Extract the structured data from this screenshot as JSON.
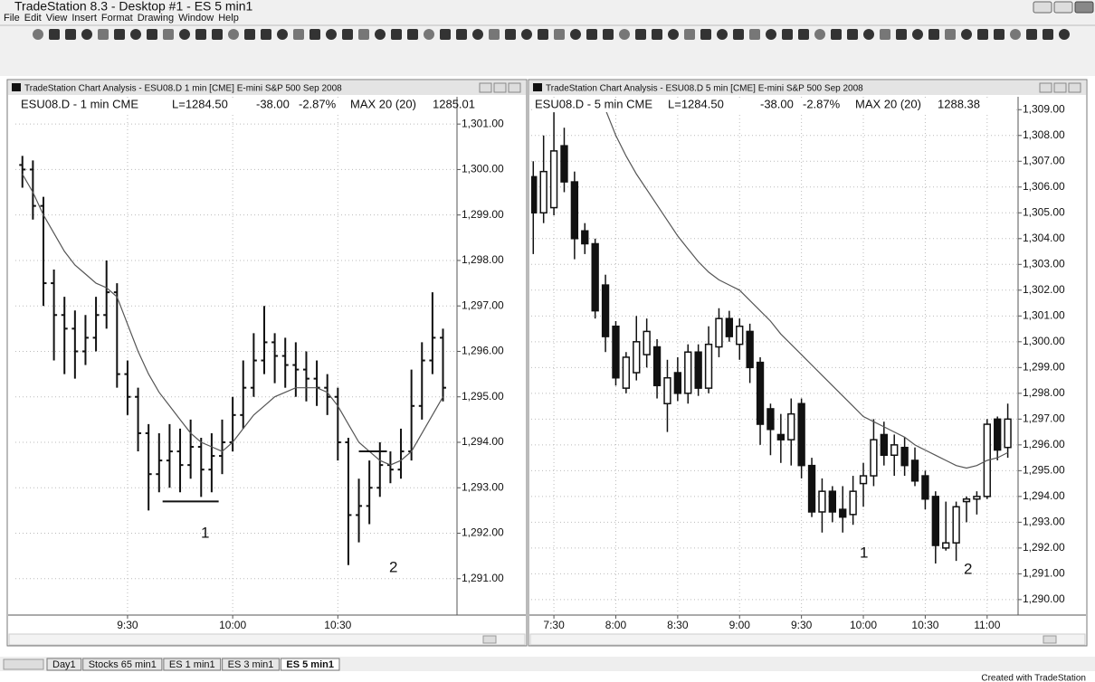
{
  "window": {
    "title": "TradeStation 8.3 - Desktop #1 - ES 5 min1",
    "menu": [
      "File",
      "Edit",
      "View",
      "Insert",
      "Format",
      "Drawing",
      "Window",
      "Help"
    ]
  },
  "panels": [
    {
      "title": "TradeStation Chart Analysis - ESU08.D 1 min [CME] E-mini S&P 500 Sep 2008",
      "header": [
        "ESU08.D - 1 min CME",
        "L=1284.50",
        "-38.00",
        "-2.87%",
        "MAX 20 (20)",
        "1285.01"
      ],
      "chart": {
        "type": "ohlc",
        "color": "#111111",
        "ma_color": "#555555",
        "grid": true,
        "x": [
          "9:00",
          "9:03",
          "9:06",
          "9:09",
          "9:12",
          "9:15",
          "9:18",
          "9:21",
          "9:24",
          "9:27",
          "9:30",
          "9:33",
          "9:36",
          "9:39",
          "9:42",
          "9:45",
          "9:48",
          "9:51",
          "9:54",
          "9:57",
          "10:00",
          "10:03",
          "10:06",
          "10:09",
          "10:12",
          "10:15",
          "10:18",
          "10:21",
          "10:24",
          "10:27",
          "10:30",
          "10:33",
          "10:36",
          "10:39",
          "10:42",
          "10:45",
          "10:48",
          "10:51",
          "10:54",
          "10:57",
          "11:00"
        ],
        "open": [
          1300.1,
          1300.0,
          1299.2,
          1297.5,
          1296.8,
          1296.5,
          1296.0,
          1296.3,
          1296.8,
          1297.3,
          1295.5,
          1295.0,
          1294.2,
          1293.3,
          1293.6,
          1293.8,
          1293.5,
          1293.9,
          1293.4,
          1293.7,
          1294.0,
          1294.6,
          1295.2,
          1295.8,
          1296.2,
          1295.9,
          1295.7,
          1295.6,
          1295.4,
          1295.2,
          1295.0,
          1294.0,
          1292.4,
          1292.6,
          1293.0,
          1293.5,
          1293.4,
          1293.8,
          1294.8,
          1295.8,
          1296.3
        ],
        "high": [
          1300.3,
          1300.2,
          1299.4,
          1297.8,
          1297.2,
          1296.9,
          1296.8,
          1297.2,
          1298.0,
          1297.5,
          1295.8,
          1295.2,
          1294.4,
          1294.2,
          1294.4,
          1294.3,
          1294.5,
          1294.1,
          1294.2,
          1294.5,
          1295.0,
          1295.8,
          1296.4,
          1297.0,
          1296.4,
          1296.3,
          1296.2,
          1296.0,
          1295.8,
          1295.5,
          1295.2,
          1294.1,
          1293.2,
          1293.6,
          1294.0,
          1293.8,
          1294.3,
          1295.6,
          1296.2,
          1297.3,
          1296.5
        ],
        "low": [
          1299.6,
          1298.9,
          1297.0,
          1295.8,
          1295.5,
          1295.4,
          1295.7,
          1296.0,
          1296.5,
          1295.2,
          1294.6,
          1293.8,
          1292.5,
          1292.9,
          1293.0,
          1292.9,
          1293.2,
          1292.8,
          1292.9,
          1293.3,
          1293.8,
          1294.3,
          1295.0,
          1295.5,
          1295.3,
          1295.2,
          1295.0,
          1294.9,
          1294.8,
          1294.6,
          1293.6,
          1291.3,
          1291.8,
          1292.2,
          1292.8,
          1293.1,
          1293.2,
          1293.6,
          1294.5,
          1295.5,
          1294.9
        ],
        "close": [
          1300.0,
          1299.2,
          1297.5,
          1296.8,
          1296.5,
          1296.0,
          1296.3,
          1296.8,
          1297.3,
          1295.5,
          1295.0,
          1294.2,
          1293.3,
          1293.6,
          1293.8,
          1293.5,
          1293.9,
          1293.4,
          1293.7,
          1294.0,
          1294.6,
          1295.2,
          1295.8,
          1296.2,
          1295.9,
          1295.7,
          1295.6,
          1295.4,
          1295.2,
          1295.0,
          1294.0,
          1292.4,
          1292.6,
          1293.0,
          1293.5,
          1293.4,
          1293.8,
          1294.8,
          1295.8,
          1296.3,
          1295.2
        ],
        "ma": [
          1299.9,
          1299.5,
          1299.0,
          1298.6,
          1298.2,
          1297.9,
          1297.7,
          1297.5,
          1297.4,
          1297.2,
          1296.6,
          1296.0,
          1295.5,
          1295.1,
          1294.8,
          1294.5,
          1294.2,
          1294.0,
          1293.9,
          1293.8,
          1294.0,
          1294.3,
          1294.6,
          1294.8,
          1295.0,
          1295.1,
          1295.2,
          1295.2,
          1295.2,
          1295.1,
          1294.8,
          1294.4,
          1294.0,
          1293.8,
          1293.6,
          1293.5,
          1293.6,
          1293.8,
          1294.2,
          1294.6,
          1295.0
        ],
        "lines": [
          {
            "price": 1292.7,
            "from": "9:40",
            "to": "9:56"
          },
          {
            "price": 1293.8,
            "from": "10:36",
            "to": "10:44"
          }
        ],
        "labels": [
          "1",
          "2"
        ],
        "xlim": [
          "8:58",
          "11:04"
        ],
        "xticks": [
          "9:30",
          "10:00",
          "10:30"
        ],
        "ylim": [
          1290.2,
          1301.6
        ],
        "yticks": [
          {
            "value": 1291,
            "label": "1,291.00"
          },
          {
            "value": 1292,
            "label": "1,292.00"
          },
          {
            "value": 1293,
            "label": "1,293.00"
          },
          {
            "value": 1294,
            "label": "1,294.00"
          },
          {
            "value": 1295,
            "label": "1,295.00"
          },
          {
            "value": 1296,
            "label": "1,296.00"
          },
          {
            "value": 1297,
            "label": "1,297.00"
          },
          {
            "value": 1298,
            "label": "1,298.00"
          },
          {
            "value": 1299,
            "label": "1,299.00"
          },
          {
            "value": 1300,
            "label": "1,300.00"
          },
          {
            "value": 1301,
            "label": "1,301.00"
          }
        ]
      }
    },
    {
      "title": "TradeStation Chart Analysis - ESU08.D 5 min [CME] E-mini S&P 500 Sep 2008",
      "header": [
        "ESU08.D - 5 min CME",
        "L=1284.50",
        "-38.00",
        "-2.87%",
        "MAX 20 (20)",
        "1288.38"
      ],
      "chart": {
        "type": "candlestick",
        "color": "#111111",
        "ma_color": "#555555",
        "grid": true,
        "x": [
          "7:20",
          "7:25",
          "7:30",
          "7:35",
          "7:40",
          "7:45",
          "7:50",
          "7:55",
          "8:00",
          "8:05",
          "8:10",
          "8:15",
          "8:20",
          "8:25",
          "8:30",
          "8:35",
          "8:40",
          "8:45",
          "8:50",
          "8:55",
          "9:00",
          "9:05",
          "9:10",
          "9:15",
          "9:20",
          "9:25",
          "9:30",
          "9:35",
          "9:40",
          "9:45",
          "9:50",
          "9:55",
          "10:00",
          "10:05",
          "10:10",
          "10:15",
          "10:20",
          "10:25",
          "10:30",
          "10:35",
          "10:40",
          "10:45",
          "10:50",
          "10:55",
          "11:00",
          "11:05",
          "11:10"
        ],
        "open": [
          1306.4,
          1305.0,
          1305.2,
          1307.6,
          1306.2,
          1304.3,
          1303.8,
          1302.2,
          1300.6,
          1298.2,
          1298.8,
          1299.5,
          1299.8,
          1297.6,
          1298.8,
          1298.0,
          1299.6,
          1298.2,
          1299.8,
          1300.9,
          1299.9,
          1300.4,
          1299.2,
          1297.4,
          1296.4,
          1296.2,
          1297.6,
          1295.2,
          1293.4,
          1294.2,
          1293.5,
          1293.3,
          1294.5,
          1294.8,
          1296.4,
          1295.6,
          1295.9,
          1295.4,
          1294.8,
          1294.0,
          1292.0,
          1292.2,
          1293.8,
          1293.9,
          1294.0,
          1297.0,
          1295.9
        ],
        "high": [
          1307.0,
          1308.0,
          1308.9,
          1308.3,
          1306.6,
          1304.6,
          1304.0,
          1302.6,
          1300.8,
          1299.6,
          1301.0,
          1300.9,
          1300.1,
          1299.3,
          1299.4,
          1299.9,
          1299.9,
          1300.6,
          1301.3,
          1301.2,
          1300.9,
          1300.7,
          1299.4,
          1297.6,
          1297.2,
          1297.8,
          1297.8,
          1295.5,
          1294.7,
          1294.4,
          1294.4,
          1294.8,
          1295.3,
          1297.0,
          1296.9,
          1296.4,
          1296.3,
          1295.9,
          1295.0,
          1294.2,
          1293.8,
          1293.8,
          1294.0,
          1294.2,
          1297.0,
          1297.1,
          1297.6
        ],
        "low": [
          1303.4,
          1304.6,
          1304.9,
          1305.8,
          1303.2,
          1303.4,
          1300.9,
          1299.6,
          1298.3,
          1298.0,
          1298.5,
          1299.0,
          1297.8,
          1296.5,
          1297.7,
          1297.6,
          1297.9,
          1298.0,
          1299.4,
          1300.0,
          1299.3,
          1298.4,
          1296.0,
          1295.6,
          1295.3,
          1295.2,
          1294.7,
          1293.2,
          1292.6,
          1293.0,
          1292.6,
          1292.9,
          1293.6,
          1294.4,
          1295.2,
          1294.8,
          1294.8,
          1294.4,
          1293.5,
          1291.4,
          1291.9,
          1291.5,
          1293.0,
          1293.3,
          1293.9,
          1295.4,
          1295.5
        ],
        "close": [
          1305.0,
          1306.6,
          1307.4,
          1306.2,
          1304.0,
          1303.8,
          1301.2,
          1300.2,
          1298.6,
          1299.4,
          1300.0,
          1300.4,
          1298.3,
          1298.6,
          1298.0,
          1299.6,
          1298.2,
          1299.9,
          1300.9,
          1300.2,
          1300.6,
          1299.0,
          1296.8,
          1296.6,
          1296.2,
          1297.2,
          1295.2,
          1293.4,
          1294.2,
          1293.4,
          1293.2,
          1294.2,
          1294.8,
          1296.2,
          1295.6,
          1296.0,
          1295.2,
          1294.6,
          1293.9,
          1292.1,
          1292.2,
          1293.6,
          1293.9,
          1294.0,
          1296.8,
          1295.8,
          1297.0
        ],
        "ma": [
          null,
          null,
          null,
          null,
          null,
          null,
          null,
          1309.0,
          1308.0,
          1307.2,
          1306.5,
          1305.9,
          1305.3,
          1304.7,
          1304.1,
          1303.6,
          1303.1,
          1302.7,
          1302.4,
          1302.2,
          1302.0,
          1301.6,
          1301.2,
          1300.8,
          1300.3,
          1299.9,
          1299.5,
          1299.1,
          1298.7,
          1298.3,
          1297.9,
          1297.5,
          1297.1,
          1296.9,
          1296.7,
          1296.5,
          1296.3,
          1296.0,
          1295.8,
          1295.6,
          1295.4,
          1295.2,
          1295.1,
          1295.2,
          1295.4,
          1295.5,
          1295.7
        ],
        "labels": [
          "1",
          "2"
        ],
        "xlim": [
          "7:19",
          "11:15"
        ],
        "xticks": [
          "7:30",
          "8:00",
          "8:30",
          "9:00",
          "9:30",
          "10:00",
          "10:30",
          "11:00"
        ],
        "ylim": [
          1289.4,
          1309.5
        ],
        "yticks": [
          {
            "value": 1290,
            "label": "1,290.00"
          },
          {
            "value": 1291,
            "label": "1,291.00"
          },
          {
            "value": 1292,
            "label": "1,292.00"
          },
          {
            "value": 1293,
            "label": "1,293.00"
          },
          {
            "value": 1294,
            "label": "1,294.00"
          },
          {
            "value": 1295,
            "label": "1,295.00"
          },
          {
            "value": 1296,
            "label": "1,296.00"
          },
          {
            "value": 1297,
            "label": "1,297.00"
          },
          {
            "value": 1298,
            "label": "1,298.00"
          },
          {
            "value": 1299,
            "label": "1,299.00"
          },
          {
            "value": 1300,
            "label": "1,300.00"
          },
          {
            "value": 1301,
            "label": "1,301.00"
          },
          {
            "value": 1302,
            "label": "1,302.00"
          },
          {
            "value": 1303,
            "label": "1,303.00"
          },
          {
            "value": 1304,
            "label": "1,304.00"
          },
          {
            "value": 1305,
            "label": "1,305.00"
          },
          {
            "value": 1306,
            "label": "1,306.00"
          },
          {
            "value": 1307,
            "label": "1,307.00"
          },
          {
            "value": 1308,
            "label": "1,308.00"
          },
          {
            "value": 1309,
            "label": "1,309.00"
          }
        ]
      }
    }
  ],
  "tabs": [
    "Day1",
    "Stocks 65 min1",
    "ES 1 min1",
    "ES 3 min1",
    "ES 5 min1"
  ],
  "footer": "Created with TradeStation"
}
